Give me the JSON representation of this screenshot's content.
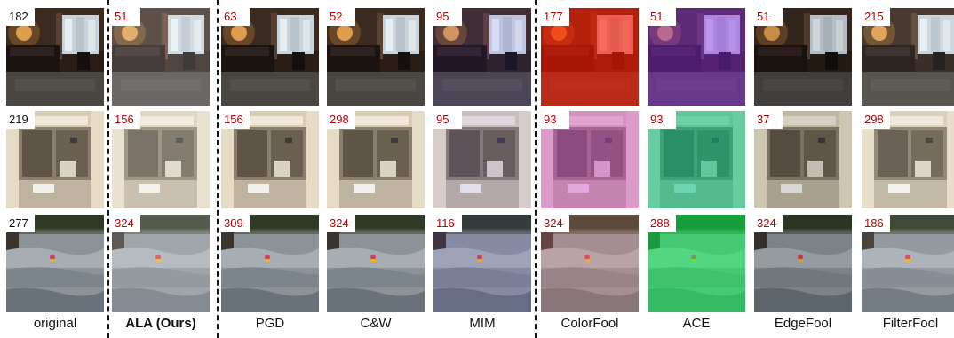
{
  "columns": [
    {
      "caption": "original",
      "bold": false,
      "labels": [
        "182",
        "219",
        "277"
      ]
    },
    {
      "caption": "ALA (Ours)",
      "bold": true,
      "labels": [
        "51",
        "156",
        "324"
      ]
    },
    {
      "caption": "PGD",
      "bold": false,
      "labels": [
        "63",
        "156",
        "309"
      ]
    },
    {
      "caption": "C&W",
      "bold": false,
      "labels": [
        "52",
        "298",
        "324"
      ]
    },
    {
      "caption": "MIM",
      "bold": false,
      "labels": [
        "95",
        "95",
        "116"
      ]
    },
    {
      "caption": "ColorFool",
      "bold": false,
      "labels": [
        "177",
        "93",
        "324"
      ]
    },
    {
      "caption": "ACE",
      "bold": false,
      "labels": [
        "51",
        "93",
        "288"
      ]
    },
    {
      "caption": "EdgeFool",
      "bold": false,
      "labels": [
        "51",
        "37",
        "324"
      ]
    },
    {
      "caption": "FilterFool",
      "bold": false,
      "labels": [
        "215",
        "298",
        "186"
      ]
    }
  ],
  "colors": {
    "label_original": "#111111",
    "label_adversarial": "#c00000"
  }
}
